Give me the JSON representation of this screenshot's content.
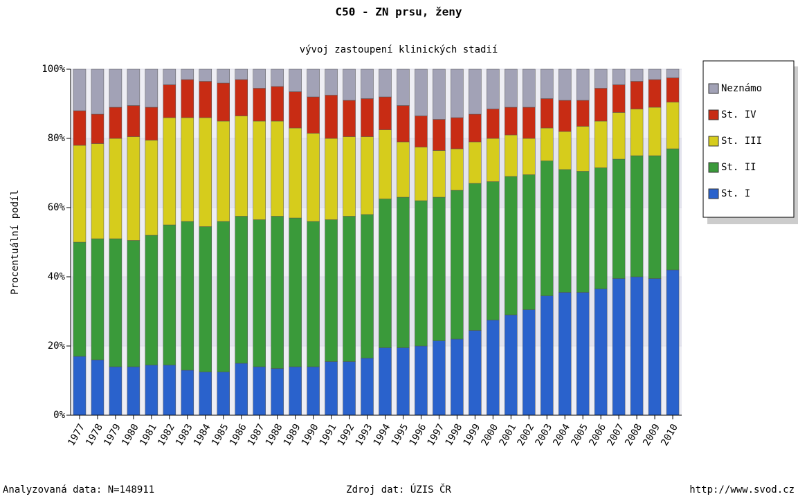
{
  "chart_data": {
    "type": "stacked_bar",
    "title": "C50 - ZN prsu, ženy",
    "subtitle": "vývoj zastoupení klinických stadií",
    "y_label": "Procentuální podíl",
    "categories": [
      "1977",
      "1978",
      "1979",
      "1980",
      "1981",
      "1982",
      "1983",
      "1984",
      "1985",
      "1986",
      "1987",
      "1988",
      "1989",
      "1990",
      "1991",
      "1992",
      "1993",
      "1994",
      "1995",
      "1996",
      "1997",
      "1998",
      "1999",
      "2000",
      "2001",
      "2002",
      "2003",
      "2004",
      "2005",
      "2006",
      "2007",
      "2008",
      "2009",
      "2010"
    ],
    "series": [
      {
        "name": "St. I",
        "color": "#2a62cc",
        "values": [
          17,
          16,
          14,
          14,
          14.5,
          14.5,
          13,
          12.5,
          12.5,
          15,
          14,
          13.5,
          14,
          14,
          15.5,
          15.5,
          16.5,
          19.5,
          19.5,
          20,
          21.5,
          22,
          24.5,
          27.5,
          29,
          30.5,
          34.5,
          35.5,
          35.5,
          36.5,
          39.5,
          40,
          39.5,
          42
        ]
      },
      {
        "name": "St. II",
        "color": "#3a9a3a",
        "values": [
          33,
          35,
          37,
          36.5,
          37.5,
          40.5,
          43,
          42,
          43.5,
          42.5,
          42.5,
          44,
          43,
          42,
          41,
          42,
          41.5,
          43,
          43.5,
          42,
          41.5,
          43,
          42.5,
          40,
          40,
          39,
          39,
          35.5,
          35,
          35,
          34.5,
          35,
          35.5,
          35
        ]
      },
      {
        "name": "St. III",
        "color": "#d6cc1c",
        "values": [
          28,
          27.5,
          29,
          30,
          27.5,
          31,
          30,
          31.5,
          29,
          29,
          28.5,
          27.5,
          26,
          25.5,
          23.5,
          23,
          22.5,
          20,
          16,
          15.5,
          13.5,
          12,
          12,
          12.5,
          12,
          10.5,
          9.5,
          11,
          13,
          13.5,
          13.5,
          13.5,
          14,
          13.5
        ]
      },
      {
        "name": "St. IV",
        "color": "#c82c14",
        "values": [
          10,
          8.5,
          9,
          9,
          9.5,
          9.5,
          11,
          10.5,
          11,
          10.5,
          9.5,
          10,
          10.5,
          10.5,
          12.5,
          10.5,
          11,
          9.5,
          10.5,
          9,
          9,
          9,
          8,
          8.5,
          8,
          9,
          8.5,
          9,
          7.5,
          9.5,
          8,
          8,
          8,
          7
        ]
      },
      {
        "name": "Neznámo",
        "color": "#a2a2b6",
        "values": [
          12,
          13,
          11,
          10.5,
          11,
          4.5,
          3,
          3.5,
          4,
          3,
          5.5,
          5,
          6.5,
          8,
          7.5,
          9,
          8.5,
          8,
          10.5,
          13.5,
          14.5,
          14,
          13,
          11.5,
          11,
          11,
          8.5,
          9,
          9,
          5.5,
          4.5,
          3.5,
          3,
          2.5
        ]
      }
    ],
    "ylim": [
      0,
      100
    ],
    "yticks": [
      {
        "value": 0,
        "label": "0%"
      },
      {
        "value": 20,
        "label": "20%"
      },
      {
        "value": 40,
        "label": "40%"
      },
      {
        "value": 60,
        "label": "60%"
      },
      {
        "value": 80,
        "label": "80%"
      },
      {
        "value": 100,
        "label": "100%"
      }
    ],
    "grid": true,
    "legend": "top-right"
  },
  "footer": {
    "left": "Analyzovaná data: N=148911",
    "center": "Zdroj dat: ÚZIS ČR",
    "right": "http://www.svod.cz"
  }
}
